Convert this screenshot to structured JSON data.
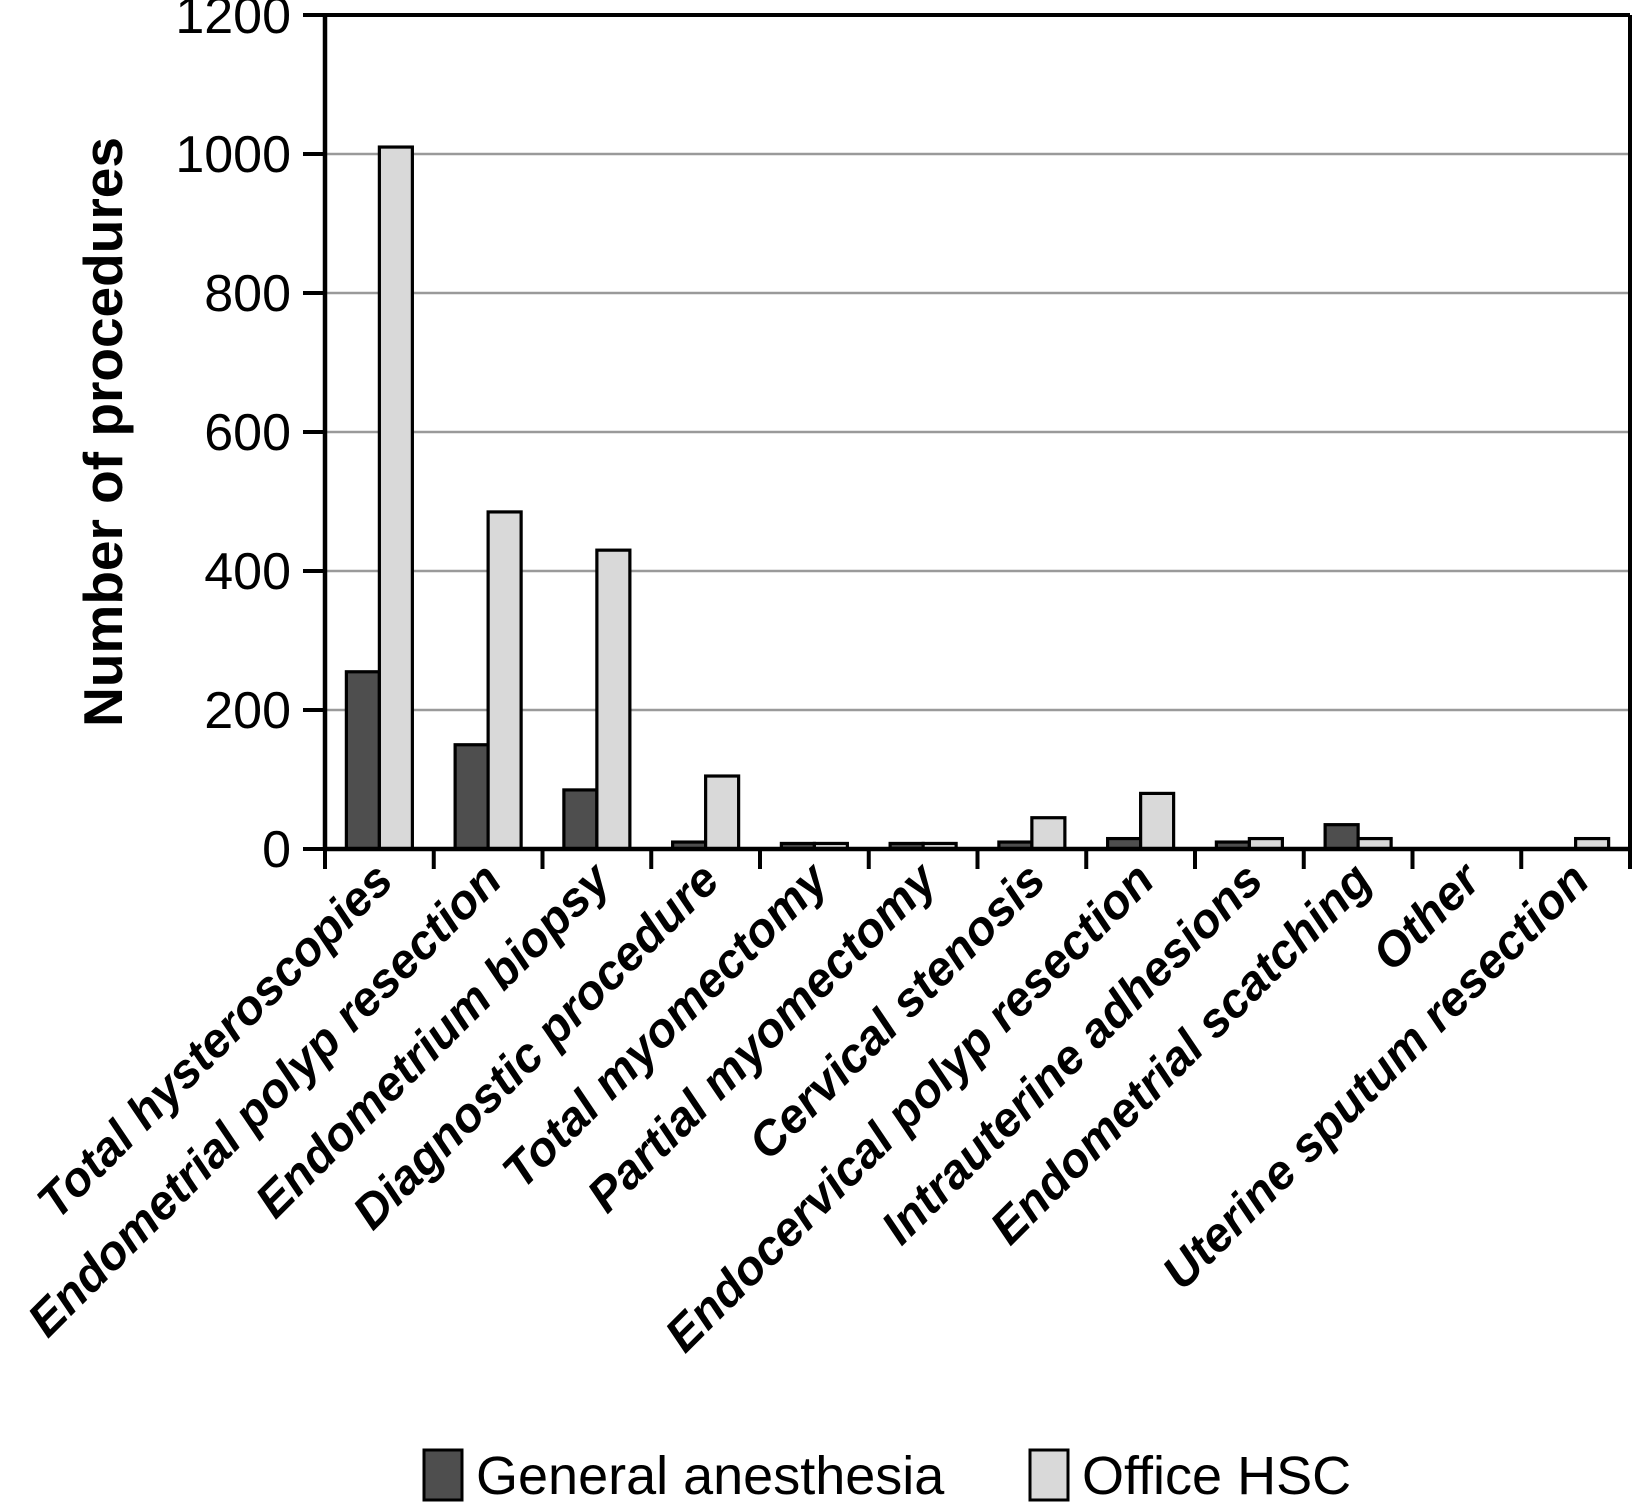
{
  "chart_data": {
    "type": "bar",
    "title": "",
    "xlabel": "",
    "ylabel": "Number of procedures",
    "ylim": [
      0,
      1200
    ],
    "ytick_step": 200,
    "ytick_labels": [
      "0",
      "200",
      "400",
      "600",
      "800",
      "1000",
      "1200"
    ],
    "grid": true,
    "legend_position": "bottom",
    "categories": [
      "Total hysteroscopies",
      "Endometrial polyp resection",
      "Endometrium biopsy",
      "Diagnostic procedure",
      "Total myomectomy",
      "Partial myomectomy",
      "Cervical stenosis",
      "Endocervical polyp resection",
      "Intrauterine adhesions",
      "Endometrial scatching",
      "Other",
      "Uterine sputum resection"
    ],
    "series": [
      {
        "name": "General anesthesia",
        "color": "#4e4e4e",
        "values": [
          255,
          150,
          85,
          10,
          8,
          8,
          10,
          15,
          10,
          35,
          0,
          0
        ]
      },
      {
        "name": "Office HSC",
        "color": "#d9d9d9",
        "values": [
          1010,
          485,
          430,
          105,
          8,
          8,
          45,
          80,
          15,
          15,
          0,
          15
        ]
      }
    ],
    "colors": {
      "bar_outline": "#000000",
      "axis": "#000000",
      "gridline": "#9a9a9a",
      "background": "#ffffff"
    }
  }
}
